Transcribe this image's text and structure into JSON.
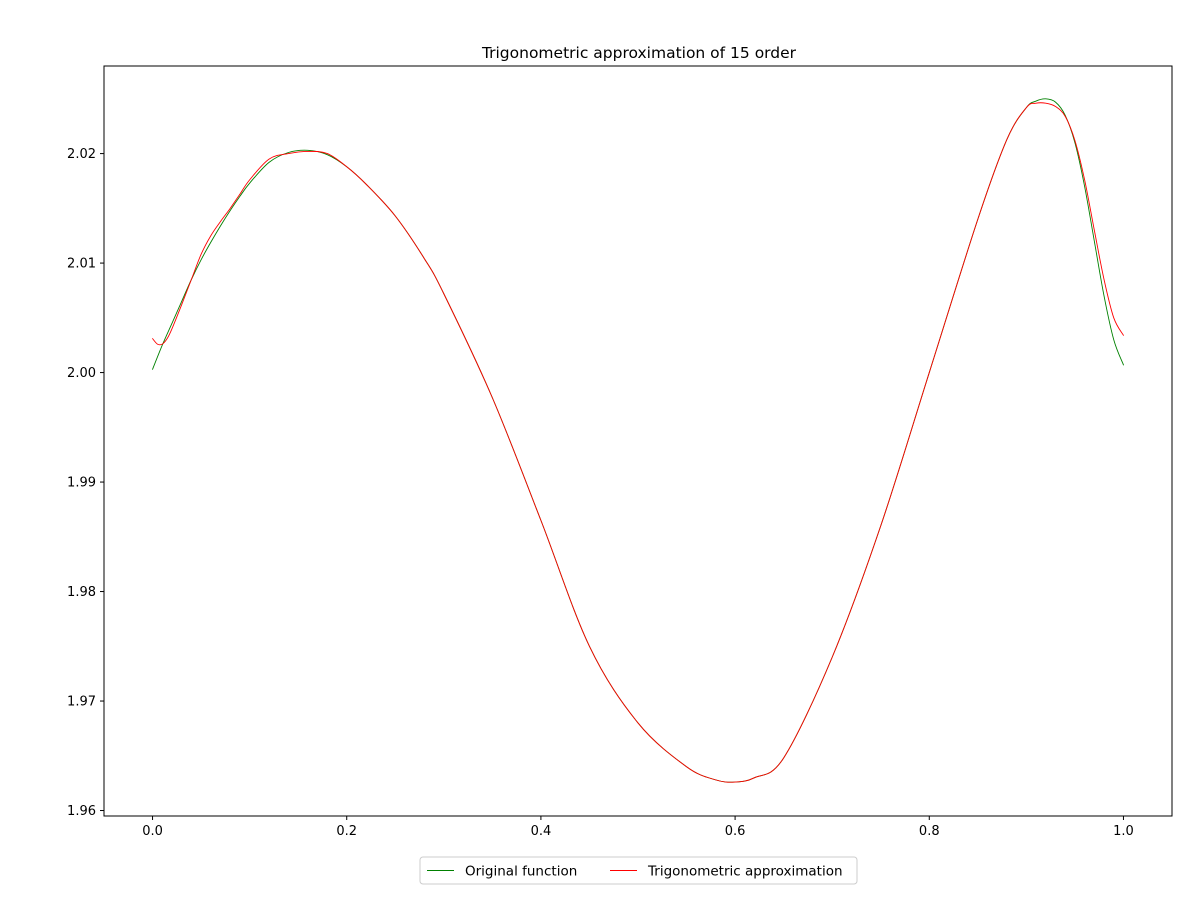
{
  "chart_data": {
    "type": "line",
    "title": "Trigonometric approximation of 15 order",
    "xlabel": "",
    "ylabel": "",
    "xlim": [
      -0.05,
      1.05
    ],
    "ylim": [
      1.9595,
      2.028
    ],
    "grid": false,
    "legend_position": "bottom-center, below axes",
    "x_ticks": [
      {
        "value": 0.0,
        "label": "0.0"
      },
      {
        "value": 0.2,
        "label": "0.2"
      },
      {
        "value": 0.4,
        "label": "0.4"
      },
      {
        "value": 0.6,
        "label": "0.6"
      },
      {
        "value": 0.8,
        "label": "0.8"
      },
      {
        "value": 1.0,
        "label": "1.0"
      }
    ],
    "y_ticks": [
      {
        "value": 1.96,
        "label": "1.96"
      },
      {
        "value": 1.97,
        "label": "1.97"
      },
      {
        "value": 1.98,
        "label": "1.98"
      },
      {
        "value": 1.99,
        "label": "1.99"
      },
      {
        "value": 2.0,
        "label": "2.00"
      },
      {
        "value": 2.01,
        "label": "2.01"
      },
      {
        "value": 2.02,
        "label": "2.02"
      }
    ],
    "series": [
      {
        "name": "Original function",
        "color": "#008000",
        "x": [
          0.0,
          0.01,
          0.02,
          0.03,
          0.04,
          0.05,
          0.06,
          0.07,
          0.08,
          0.09,
          0.1,
          0.12,
          0.14,
          0.16,
          0.18,
          0.2,
          0.22,
          0.25,
          0.28,
          0.3,
          0.35,
          0.4,
          0.45,
          0.5,
          0.55,
          0.58,
          0.6,
          0.62,
          0.65,
          0.7,
          0.75,
          0.8,
          0.85,
          0.88,
          0.9,
          0.91,
          0.92,
          0.93,
          0.94,
          0.95,
          0.96,
          0.97,
          0.98,
          0.99,
          1.0
        ],
        "y": [
          2.0003,
          2.0025,
          2.0045,
          2.0065,
          2.0085,
          2.0103,
          2.0119,
          2.0134,
          2.0148,
          2.0161,
          2.0173,
          2.0192,
          2.0201,
          2.0203,
          2.0199,
          2.0188,
          2.0172,
          2.0143,
          2.0104,
          2.0072,
          1.9977,
          1.9865,
          1.975,
          1.968,
          1.964,
          1.9628,
          1.9626,
          1.963,
          1.9648,
          1.974,
          1.986,
          2.0,
          2.014,
          2.0213,
          2.0242,
          2.0248,
          2.025,
          2.0247,
          2.0235,
          2.021,
          2.017,
          2.012,
          2.007,
          2.003,
          2.0007
        ]
      },
      {
        "name": "Trigonometric approximation",
        "color": "#ff0000",
        "x": [
          0.0,
          0.005,
          0.01,
          0.015,
          0.02,
          0.03,
          0.04,
          0.05,
          0.06,
          0.07,
          0.08,
          0.09,
          0.1,
          0.12,
          0.14,
          0.16,
          0.18,
          0.2,
          0.22,
          0.25,
          0.28,
          0.3,
          0.35,
          0.4,
          0.45,
          0.5,
          0.55,
          0.58,
          0.6,
          0.62,
          0.65,
          0.7,
          0.75,
          0.8,
          0.85,
          0.88,
          0.9,
          0.91,
          0.92,
          0.93,
          0.94,
          0.95,
          0.96,
          0.97,
          0.98,
          0.99,
          1.0
        ],
        "y": [
          2.0031,
          2.0026,
          2.0026,
          2.0031,
          2.004,
          2.0062,
          2.0085,
          2.0108,
          2.0125,
          2.0138,
          2.015,
          2.0163,
          2.0176,
          2.0195,
          2.02,
          2.0202,
          2.02,
          2.0188,
          2.0172,
          2.0143,
          2.0104,
          2.0072,
          1.9977,
          1.9865,
          1.975,
          1.968,
          1.964,
          1.9628,
          1.9626,
          1.963,
          1.9648,
          1.974,
          1.986,
          2.0,
          2.014,
          2.0213,
          2.0242,
          2.0246,
          2.0246,
          2.0243,
          2.0234,
          2.0212,
          2.0176,
          2.013,
          2.0085,
          2.005,
          2.0034
        ]
      }
    ]
  }
}
